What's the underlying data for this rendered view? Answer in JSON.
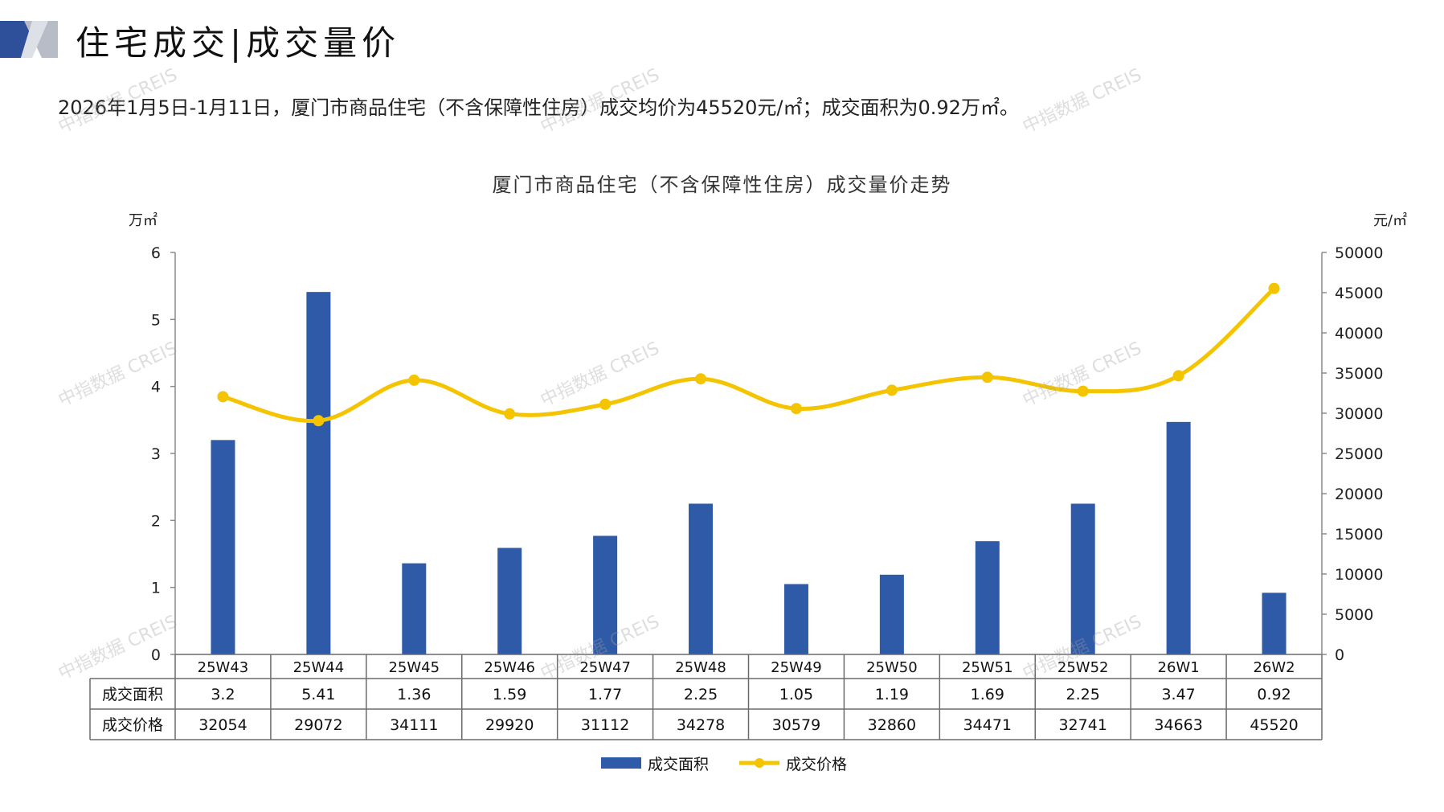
{
  "header": {
    "title": "住宅成交|成交量价",
    "accent_color": "#2E4F9A"
  },
  "summary_text": "2026年1月5日-1月11日，厦门市商品住宅（不含保障性住房）成交均价为45520元/㎡；成交面积为0.92万㎡。",
  "watermark_text": "中指数据 CREIS",
  "chart_data": {
    "type": "bar",
    "title": "厦门市商品住宅（不含保障性住房）成交量价走势",
    "categories": [
      "25W43",
      "25W44",
      "25W45",
      "25W46",
      "25W47",
      "25W48",
      "25W49",
      "25W50",
      "25W51",
      "25W52",
      "26W1",
      "26W2"
    ],
    "y_left": {
      "unit": "万㎡",
      "ticks": [
        "0",
        "1",
        "2",
        "3",
        "4",
        "5",
        "6"
      ],
      "range": [
        0,
        6
      ]
    },
    "y_right": {
      "unit": "元/㎡",
      "ticks": [
        "0",
        "5000",
        "10000",
        "15000",
        "20000",
        "25000",
        "30000",
        "35000",
        "40000",
        "45000",
        "50000"
      ],
      "range": [
        0,
        50000
      ]
    },
    "series": [
      {
        "name": "成交面积",
        "type": "bar",
        "color": "#2E5AA7",
        "values": [
          3.2,
          5.41,
          1.36,
          1.59,
          1.77,
          2.25,
          1.05,
          1.19,
          1.69,
          2.25,
          3.47,
          0.92
        ],
        "labels": [
          "3.2",
          "5.41",
          "1.36",
          "1.59",
          "1.77",
          "2.25",
          "1.05",
          "1.19",
          "1.69",
          "2.25",
          "3.47",
          "0.92"
        ]
      },
      {
        "name": "成交价格",
        "type": "line",
        "color": "#F5C400",
        "smooth": true,
        "values": [
          32054,
          29072,
          34111,
          29920,
          31112,
          34278,
          30579,
          32860,
          34471,
          32741,
          34663,
          45520
        ],
        "labels": [
          "32054",
          "29072",
          "34111",
          "29920",
          "31112",
          "34278",
          "30579",
          "32860",
          "34471",
          "32741",
          "34663",
          "45520"
        ]
      }
    ],
    "data_table": true,
    "legend": "bottom-center",
    "grid": false
  }
}
